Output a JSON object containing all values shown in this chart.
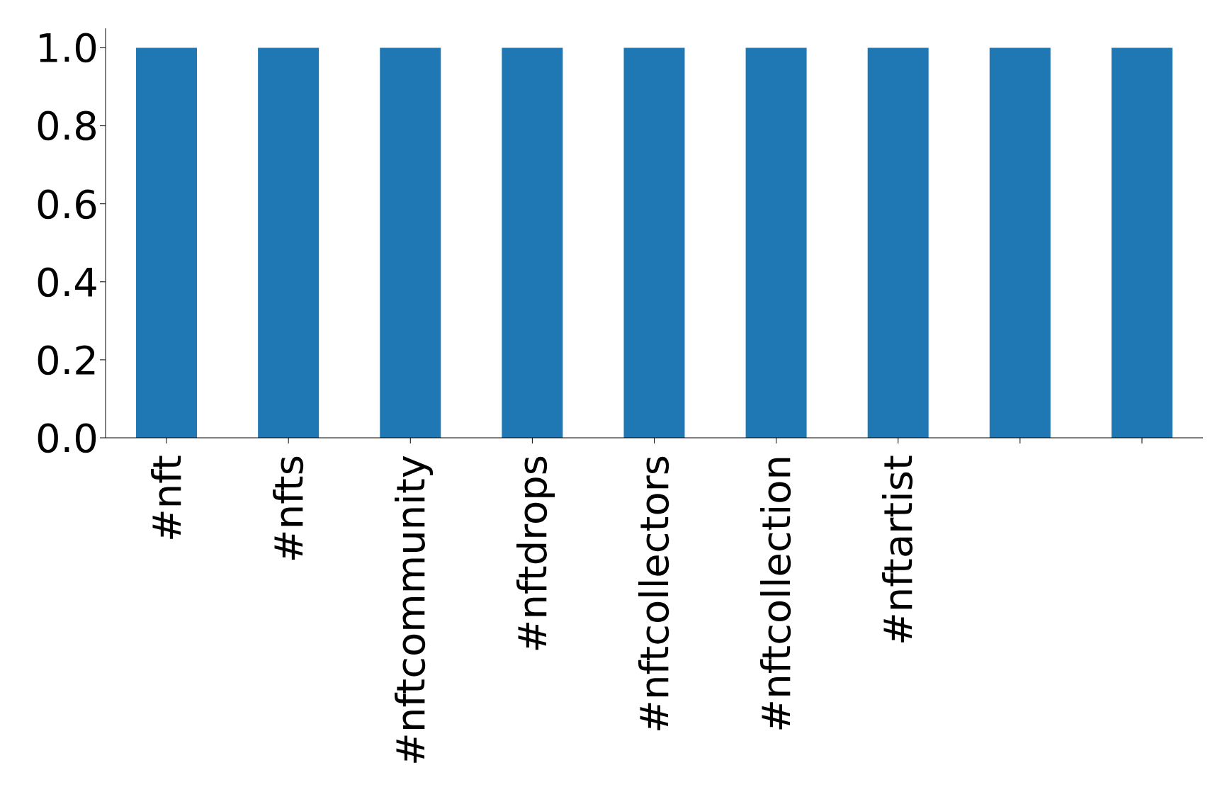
{
  "chart_data": {
    "type": "bar",
    "categories": [
      "#nft",
      "#nfts",
      "#nftcommunity",
      "#nftdrops",
      "#nftcollectors",
      "#nftcollection",
      "#nftartist",
      null,
      null
    ],
    "values": [
      1,
      1,
      1,
      1,
      1,
      1,
      1,
      1,
      1
    ],
    "color": "#1f77b4",
    "ylim": [
      0,
      1.05
    ],
    "yticks": [
      {
        "value": 0,
        "label": "0.0"
      },
      {
        "value": 0.2,
        "label": "0.2"
      },
      {
        "value": 0.4,
        "label": "0.4"
      },
      {
        "value": 0.6,
        "label": "0.6"
      },
      {
        "value": 0.8,
        "label": "0.8"
      },
      {
        "value": 1,
        "label": "1.0"
      }
    ],
    "grid": false
  }
}
